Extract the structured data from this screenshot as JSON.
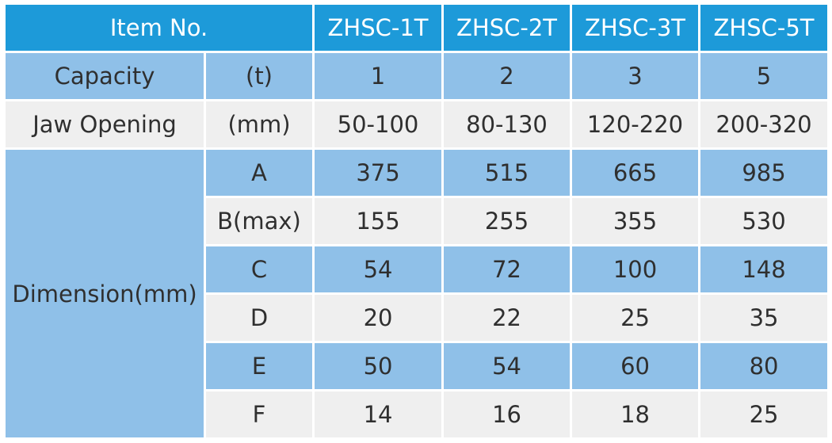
{
  "colors": {
    "header": "#1d9ad9",
    "row_blue": "#8fc0e8",
    "row_gray": "#efefef",
    "header_text": "#ffffff",
    "body_text": "#2f2f2f"
  },
  "header": {
    "item_label": "Item No.",
    "models": [
      "ZHSC-1T",
      "ZHSC-2T",
      "ZHSC-3T",
      "ZHSC-5T"
    ]
  },
  "capacity": {
    "label": "Capacity",
    "unit": "(t)",
    "values": [
      "1",
      "2",
      "3",
      "5"
    ]
  },
  "jaw_opening": {
    "label": "Jaw Opening",
    "unit": "(mm)",
    "values": [
      "50-100",
      "80-130",
      "120-220",
      "200-320"
    ]
  },
  "dimension": {
    "label": "Dimension(mm)",
    "rows": [
      {
        "key": "A",
        "values": [
          "375",
          "515",
          "665",
          "985"
        ]
      },
      {
        "key": "B(max)",
        "values": [
          "155",
          "255",
          "355",
          "530"
        ]
      },
      {
        "key": "C",
        "values": [
          "54",
          "72",
          "100",
          "148"
        ]
      },
      {
        "key": "D",
        "values": [
          "20",
          "22",
          "25",
          "35"
        ]
      },
      {
        "key": "E",
        "values": [
          "50",
          "54",
          "60",
          "80"
        ]
      },
      {
        "key": "F",
        "values": [
          "14",
          "16",
          "18",
          "25"
        ]
      }
    ]
  }
}
